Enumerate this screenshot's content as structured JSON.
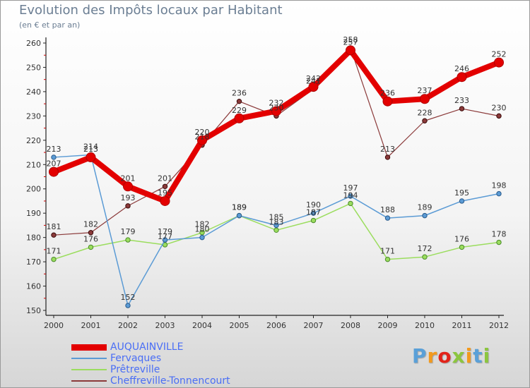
{
  "chart_data": {
    "type": "line",
    "title": "Evolution des Impôts locaux par Habitant",
    "subtitle": "(en € et par an)",
    "categories": [
      "2000",
      "2001",
      "2002",
      "2003",
      "2004",
      "2005",
      "2006",
      "2007",
      "2008",
      "2009",
      "2010",
      "2011",
      "2012"
    ],
    "ylim": [
      150,
      260
    ],
    "yticks": [
      150,
      160,
      170,
      180,
      190,
      200,
      210,
      220,
      230,
      240,
      250,
      260
    ],
    "grid": false,
    "legend_position": "bottom-left",
    "series": [
      {
        "name": "AUQUAINVILLE",
        "values": [
          207,
          213,
          201,
          195,
          220,
          229,
          232,
          242,
          257,
          236,
          237,
          246,
          252
        ],
        "color": "#e30000",
        "labels": [
          "207",
          "213",
          "201",
          "195",
          "220",
          "229",
          "232",
          "242",
          "257",
          "236",
          "237",
          "246",
          "252"
        ]
      },
      {
        "name": "Fervaques",
        "values": [
          213,
          214,
          152,
          179,
          180,
          189,
          185,
          190,
          197,
          188,
          189,
          195,
          198
        ],
        "color": "#5b9bd5",
        "labels": [
          "213",
          "214",
          "152",
          "179",
          "180",
          "189",
          "185",
          "190",
          "197",
          "188",
          "189",
          "195",
          "198"
        ]
      },
      {
        "name": "Prêtreville",
        "values": [
          171,
          176,
          179,
          177,
          182,
          189,
          183,
          187,
          194,
          171,
          172,
          176,
          178
        ],
        "color": "#9bdd5e",
        "labels": [
          "171",
          "176",
          "179",
          "177",
          "182",
          "189",
          "183",
          "187",
          "194",
          "171",
          "172",
          "176",
          "178"
        ]
      },
      {
        "name": "Cheffreville-Tonnencourt",
        "values": [
          181,
          182,
          193,
          201,
          218,
          236,
          230,
          241,
          258,
          213,
          228,
          233,
          230
        ],
        "color": "#8b3a3a",
        "labels": [
          "181",
          "182",
          "193",
          "201",
          "218",
          "236",
          "230",
          "241",
          "258",
          "213",
          "228",
          "233",
          "230"
        ]
      }
    ]
  },
  "brand": {
    "letters": [
      "P",
      "r",
      "o",
      "x",
      "i",
      "t",
      "i"
    ],
    "colors": [
      "#5aa0d8",
      "#f29a1e",
      "#e2231a",
      "#8cc63f",
      "#f29a1e",
      "#5aa0d8",
      "#8cc63f"
    ]
  }
}
